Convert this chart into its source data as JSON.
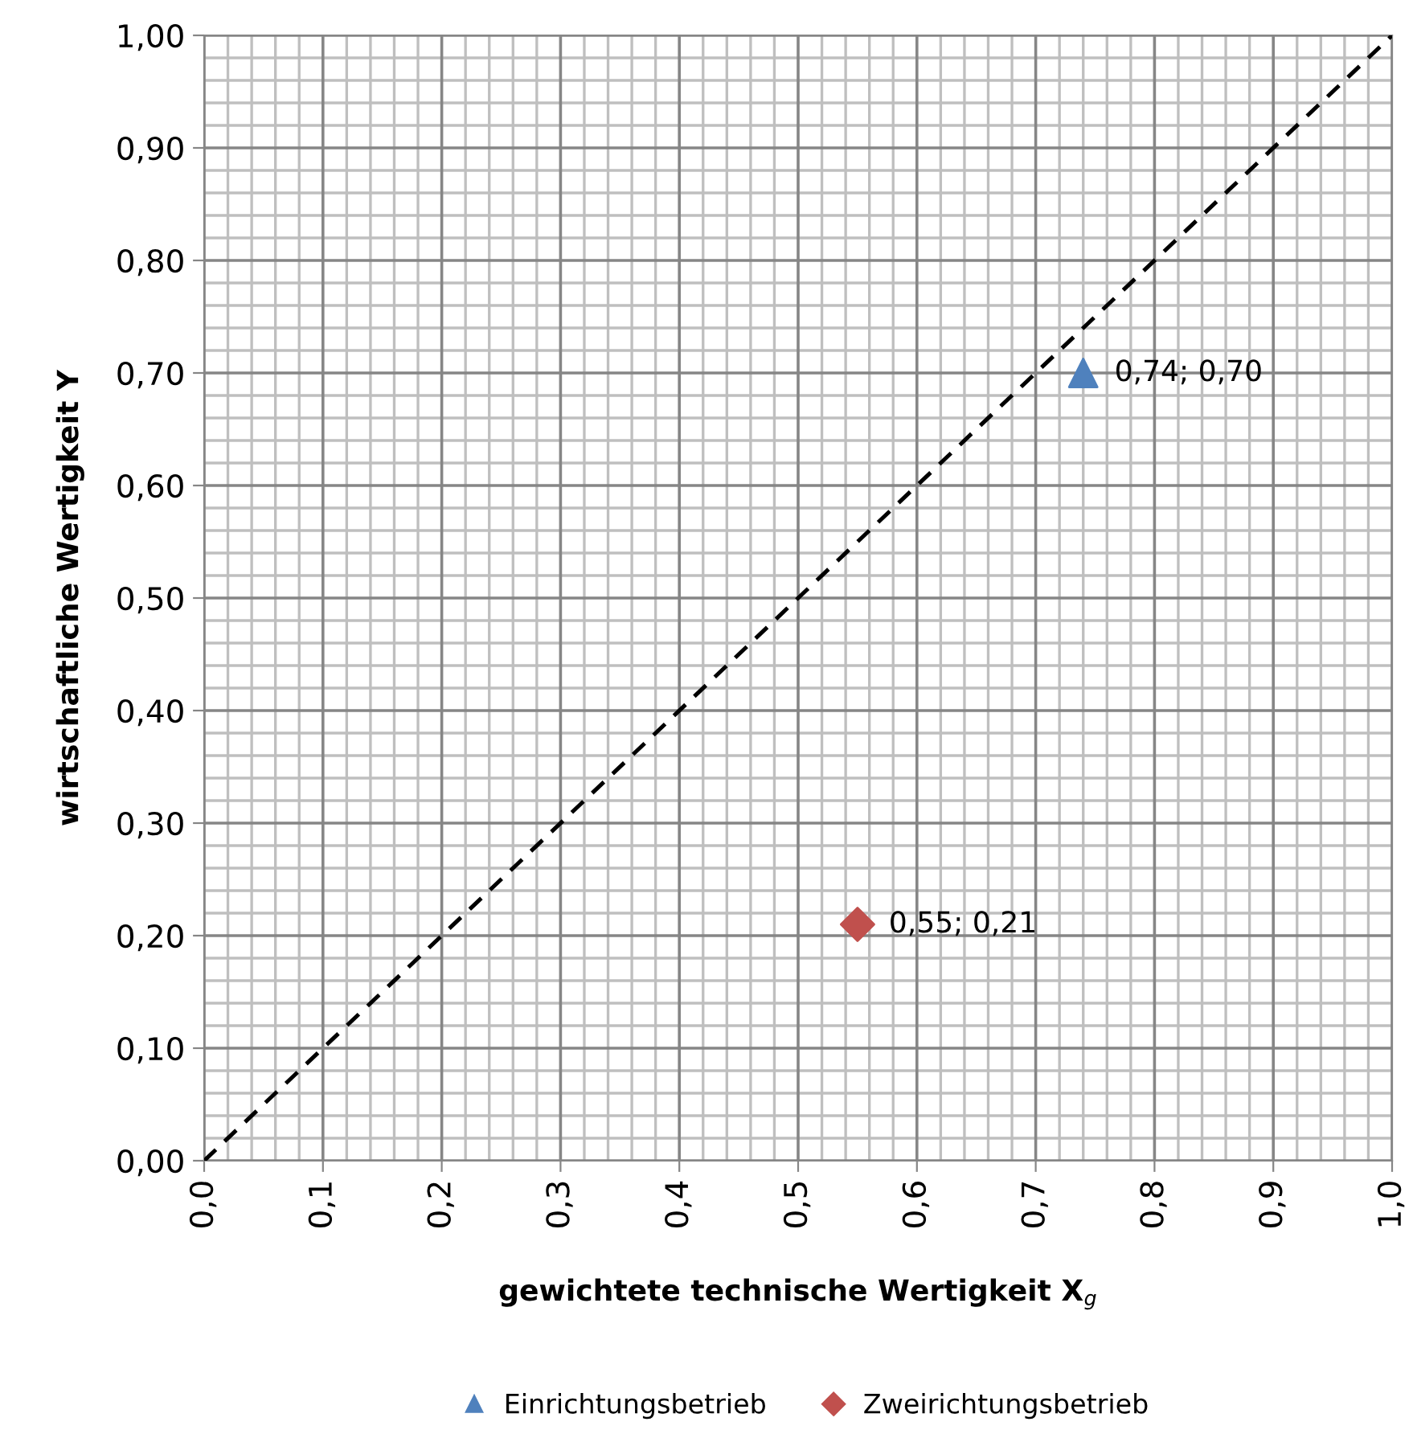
{
  "chart_data": {
    "type": "scatter",
    "xlabel": "gewichtete technische Wertigkeit X$_{g}$",
    "ylabel": "wirtschaftliche Wertigkeit Y",
    "xlim": [
      0,
      1
    ],
    "ylim": [
      0,
      1
    ],
    "xticks": [
      {
        "value": 0,
        "label": "0,0"
      },
      {
        "value": 0.1,
        "label": "0,1"
      },
      {
        "value": 0.2,
        "label": "0,2"
      },
      {
        "value": 0.3,
        "label": "0,3"
      },
      {
        "value": 0.4,
        "label": "0,4"
      },
      {
        "value": 0.5,
        "label": "0,5"
      },
      {
        "value": 0.6,
        "label": "0,6"
      },
      {
        "value": 0.7,
        "label": "0,7"
      },
      {
        "value": 0.8,
        "label": "0,8"
      },
      {
        "value": 0.9,
        "label": "0,9"
      },
      {
        "value": 1,
        "label": "1,0"
      }
    ],
    "yticks": [
      {
        "value": 0,
        "label": "0,00"
      },
      {
        "value": 0.1,
        "label": "0,10"
      },
      {
        "value": 0.2,
        "label": "0,20"
      },
      {
        "value": 0.3,
        "label": "0,30"
      },
      {
        "value": 0.4,
        "label": "0,40"
      },
      {
        "value": 0.5,
        "label": "0,50"
      },
      {
        "value": 0.6,
        "label": "0,60"
      },
      {
        "value": 0.7,
        "label": "0,70"
      },
      {
        "value": 0.8,
        "label": "0,80"
      },
      {
        "value": 0.9,
        "label": "0,90"
      },
      {
        "value": 1,
        "label": "1,00"
      }
    ],
    "grid": true,
    "legend": "bottom",
    "series": [
      {
        "type": "line",
        "x": [
          0,
          1
        ],
        "values": [
          0,
          1
        ],
        "color": "#000000",
        "line_style": "dashed",
        "marker": "none"
      },
      {
        "name": "Einrichtungsbetrieb",
        "x": [
          0.74
        ],
        "values": [
          0.7
        ],
        "color": "#4f81bd",
        "marker": "triangle",
        "value_labels": [
          "0,74; 0,70"
        ]
      },
      {
        "name": "Zweirichtungsbetrieb",
        "x": [
          0.55
        ],
        "values": [
          0.21
        ],
        "color": "#c0504d",
        "marker": "diamond",
        "value_labels": [
          "0,55; 0,21"
        ]
      }
    ]
  }
}
